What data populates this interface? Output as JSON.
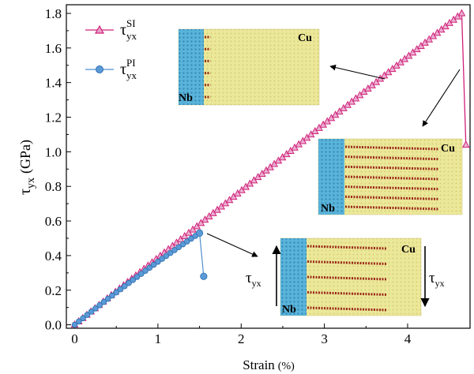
{
  "chart_data": {
    "type": "line",
    "xlabel": "Strain",
    "xlabel_unit": "(%)",
    "ylabel_main": "τ",
    "ylabel_sub": "yx",
    "ylabel_unit": "(GPa)",
    "xlim": [
      -0.1,
      4.75
    ],
    "ylim": [
      -0.02,
      1.85
    ],
    "x_ticks": [
      0,
      1,
      2,
      3,
      4
    ],
    "x_tick_labels": [
      "0",
      "1",
      "2",
      "3",
      "4"
    ],
    "y_ticks": [
      0.0,
      0.2,
      0.4,
      0.6,
      0.8,
      1.0,
      1.2,
      1.4,
      1.6,
      1.8
    ],
    "y_tick_labels": [
      "0.0",
      "0.2",
      "0.4",
      "0.6",
      "0.8",
      "1.0",
      "1.2",
      "1.4",
      "1.6",
      "1.8"
    ],
    "grid": false,
    "legend_position": "top-left",
    "series": [
      {
        "name_main": "τ",
        "name_sub": "yx",
        "name_sup": "SI",
        "color": "#d0207a",
        "marker": "triangle-open",
        "x_end": 4.65,
        "y_end": 1.8,
        "drop_x": 4.7,
        "drop_y": 1.04
      },
      {
        "name_main": "τ",
        "name_sub": "yx",
        "name_sup": "PI",
        "color": "#4f8fcf",
        "marker": "circle",
        "x_end": 1.5,
        "y_end": 0.53,
        "drop_x": 1.55,
        "drop_y": 0.28
      }
    ],
    "insets": [
      {
        "id": "top",
        "label_right": "Cu",
        "label_left": "Nb",
        "stripes": 6,
        "stripe_len": 0.05
      },
      {
        "id": "right",
        "label_right": "Cu",
        "label_left": "Nb",
        "stripes": 7,
        "stripe_len": 0.8
      },
      {
        "id": "bottom",
        "label_right": "Cu",
        "label_left": "Nb",
        "stripes": 5,
        "stripe_len": 0.7,
        "arrow_left_main": "τ",
        "arrow_left_sub": "yx",
        "arrow_right_main": "τ",
        "arrow_right_sub": "yx"
      }
    ]
  }
}
